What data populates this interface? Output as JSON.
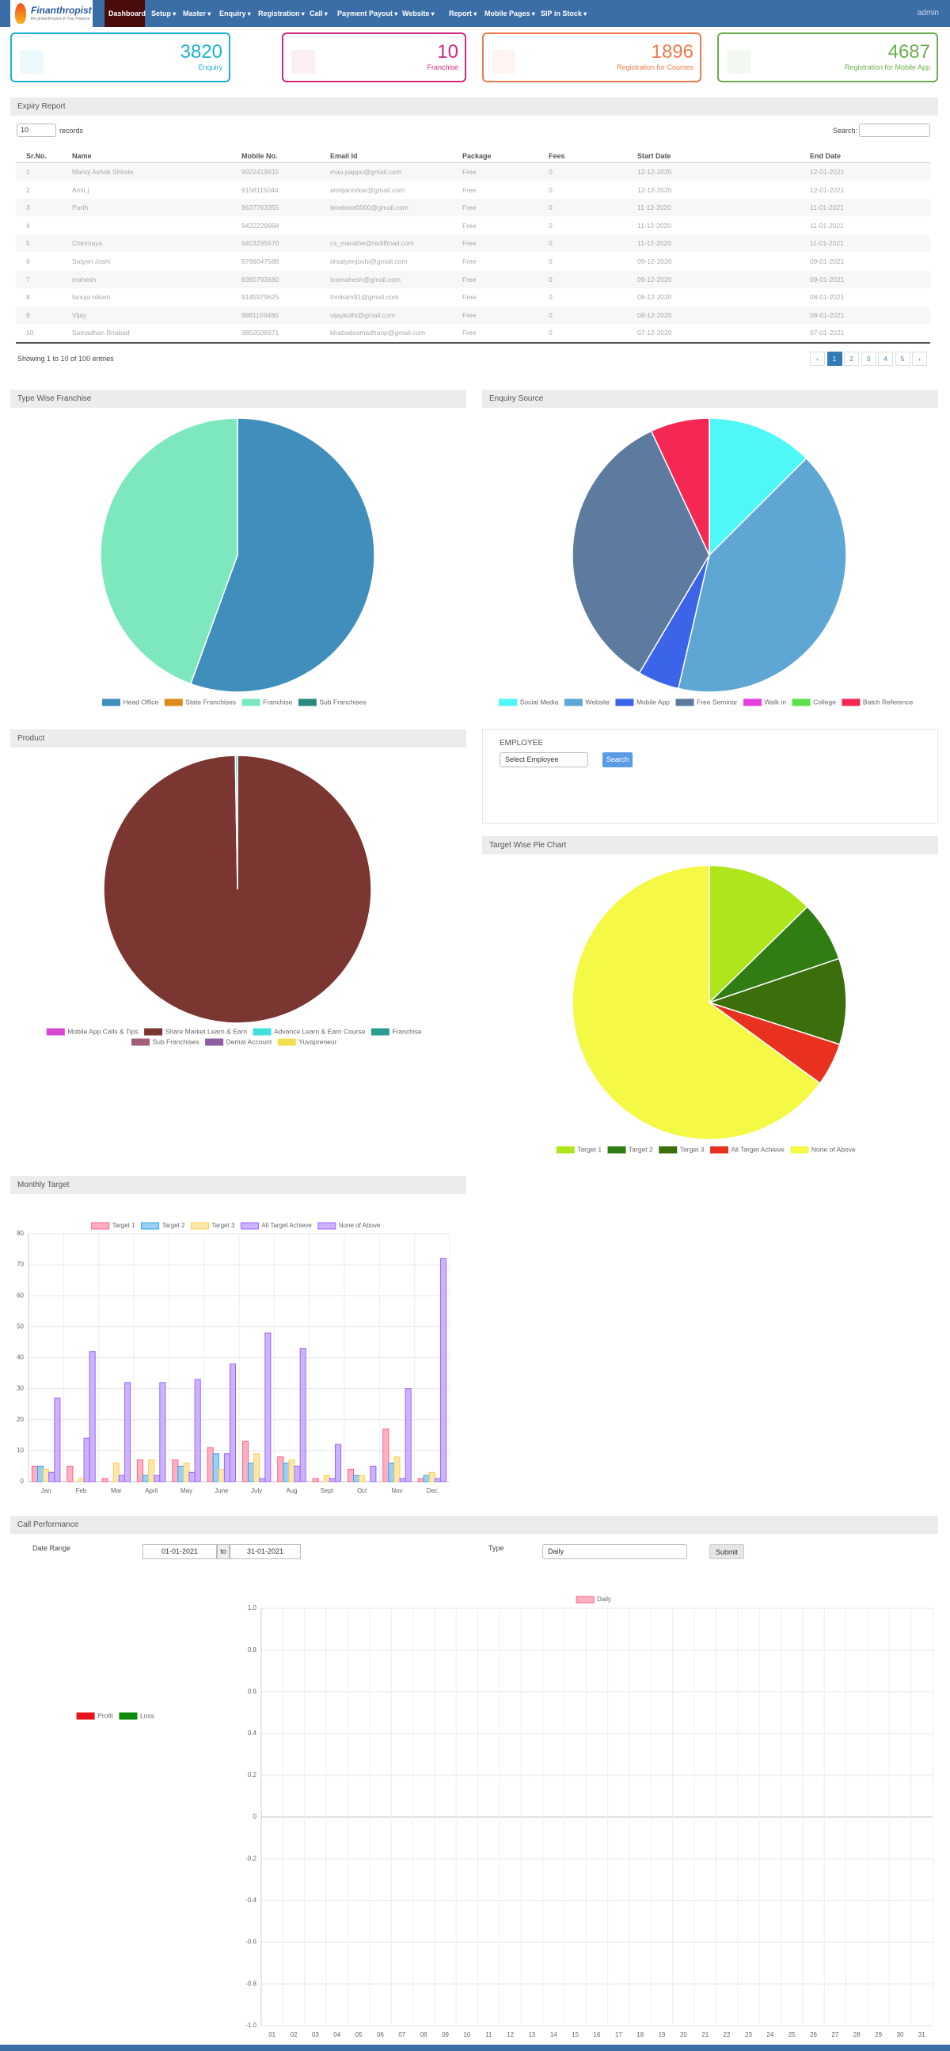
{
  "nav": {
    "brand": "Finanthropist",
    "tagline": "the philanthropist of Your Finance",
    "menu": [
      "Dashboard",
      "Setup",
      "Master",
      "Enquiry",
      "Registration",
      "Call",
      "Payment Payout",
      "Website",
      "Report",
      "Mobile Pages",
      "SIP in Stock"
    ],
    "user": "admin"
  },
  "stats": [
    {
      "value": 3820,
      "label": "Enquiry",
      "color": "#1cb2d4"
    },
    {
      "value": 10,
      "label": "Franchise",
      "color": "#d1287f"
    },
    {
      "value": 1896,
      "label": "Registration for Courses",
      "color": "#ef7a4c"
    },
    {
      "value": 4687,
      "label": "Registration for Mobile App",
      "color": "#6aaf4d"
    }
  ],
  "expiry_report": {
    "title": "Expiry Report",
    "length": "10",
    "records": "records",
    "search": "Search:",
    "columns": [
      "Sr.No.",
      "Name",
      "Mobile No.",
      "Email Id",
      "Package",
      "Fees",
      "Start Date",
      "End Date"
    ],
    "rows": [
      [
        "1",
        "Manoj Ashok Shinde",
        "9922419915",
        "mau.pappu@gmail.com",
        "Free",
        "0",
        "12-12-2020",
        "12-01-2021"
      ],
      [
        "2",
        "Amit j",
        "9158115044",
        "amitjanorkar@gmail.com",
        "Free",
        "0",
        "12-12-2020",
        "12-01-2021"
      ],
      [
        "3",
        "Parth",
        "9637763355",
        "timeboot0000@gmail.com",
        "Free",
        "0",
        "11-12-2020",
        "11-01-2021"
      ],
      [
        "4",
        null,
        "9422229968",
        null,
        "Free",
        "0",
        "11-12-2020",
        "11-01-2021"
      ],
      [
        "5",
        "Chinmaya",
        "9403295570",
        "cs_marathe@rediffmail.com",
        "Free",
        "0",
        "11-12-2020",
        "11-01-2021"
      ],
      [
        "6",
        "Satyen Joshi",
        "9766047588",
        "drsatyenjoshi@gmail.com",
        "Free",
        "0",
        "09-12-2020",
        "09-01-2021"
      ],
      [
        "7",
        "mahesh",
        "8390793680",
        "Icemahesh@gmail.com",
        "Free",
        "0",
        "09-12-2020",
        "09-01-2021"
      ],
      [
        "8",
        "tanuja nikam",
        "9145979625",
        "tnnikam91@gmail.com",
        "Free",
        "0",
        "08-12-2020",
        "08-01-2021"
      ],
      [
        "9",
        "Vijay",
        "9881159480",
        "vijaykolhi@gmail.com",
        "Free",
        "0",
        "08-12-2020",
        "08-01-2021"
      ],
      [
        "10",
        "Samadhan Bhabad",
        "9850508971",
        "bhabadsamadhanp@gmail.com",
        "Free",
        "0",
        "07-12-2020",
        "07-01-2021"
      ]
    ],
    "info": "Showing 1 to 10 of 100 entries",
    "pages": [
      "‹",
      "1",
      "2",
      "3",
      "4",
      "5",
      "›"
    ]
  },
  "employee": {
    "label": "EMPLOYEE",
    "select": "Select Employee",
    "button": "Search"
  },
  "call_performance": {
    "title": "Call Performance",
    "date_range": "Date Range",
    "from": "01-01-2021",
    "to_label": "to",
    "to": "31-01-2021",
    "type_label": "Type",
    "type": "Daily",
    "submit": "Submit"
  },
  "chart_data": [
    {
      "type": "pie",
      "title": "Type Wise Franchise",
      "categories": [
        "Head Office",
        "State Franchises",
        "Franchise",
        "Sub Franchises"
      ],
      "values": [
        5,
        0,
        4,
        0
      ],
      "colors": [
        "#3f8ebb",
        "#e0891d",
        "#7de8bd",
        "#2a8a80"
      ]
    },
    {
      "type": "pie",
      "title": "Enquiry Source",
      "categories": [
        "Social Media",
        "Website",
        "Mobile App",
        "Free Seminar",
        "Walk in",
        "College",
        "Batch Reference"
      ],
      "values": [
        478,
        1571,
        187,
        1318,
        0,
        0,
        266
      ],
      "colors": [
        "#4ef8f6",
        "#5ea6d3",
        "#3b64e8",
        "#5d7b9e",
        "#e63fe0",
        "#5ce04b",
        "#f42853"
      ]
    },
    {
      "type": "pie",
      "title": "Product",
      "categories": [
        "Mobile App Calls & Tips",
        "Share Market Learn & Earn",
        "Advance Learn & Earn Course",
        "Franchise",
        "Sub Franchises",
        "Demat Account",
        "Yuvapreneur"
      ],
      "values": [
        0,
        1891,
        5,
        0,
        0,
        0,
        0
      ],
      "colors": [
        "#d946d0",
        "#7b3631",
        "#40e0e0",
        "#2a9d8f",
        "#a0607a",
        "#8e5ca0",
        "#f0e050"
      ]
    },
    {
      "type": "pie",
      "title": "Target Wise Pie Chart",
      "categories": [
        "Target 1",
        "Target 2",
        "Target 3",
        "All Target Achieve",
        "None of Above"
      ],
      "values": [
        25,
        14,
        20,
        10,
        128
      ],
      "colors": [
        "#aee51b",
        "#2f7d13",
        "#3a6f0b",
        "#e8321f",
        "#f3f944"
      ]
    },
    {
      "type": "bar",
      "title": "Monthly Target",
      "categories": [
        "Jan",
        "Feb",
        "Mar",
        "April",
        "May",
        "June",
        "July",
        "Aug",
        "Sept",
        "Oct",
        "Nov",
        "Dec"
      ],
      "series": [
        {
          "name": "Target 1",
          "color": "#ffb1c1",
          "border_color": "#ff6384",
          "values": [
            5,
            5,
            1,
            7,
            7,
            11,
            13,
            8,
            1,
            4,
            17,
            1
          ]
        },
        {
          "name": "Target 2",
          "color": "#9ad0f5",
          "border_color": "#36a2eb",
          "values": [
            5,
            0,
            0,
            2,
            5,
            9,
            6,
            6,
            0,
            2,
            6,
            2
          ]
        },
        {
          "name": "Target 3",
          "color": "#ffe6aa",
          "border_color": "#ffcd56",
          "values": [
            4,
            1,
            6,
            7,
            6,
            4,
            9,
            7,
            2,
            2,
            8,
            3
          ]
        },
        {
          "name": "All Target Achieve",
          "color": "#ccb2ff",
          "border_color": "#9966ff",
          "values": [
            3,
            14,
            2,
            2,
            3,
            9,
            1,
            5,
            1,
            0,
            1,
            1
          ]
        },
        {
          "name": "None of Above",
          "color": "#ccb2ff",
          "border_color": "#9966ff",
          "values": [
            27,
            42,
            32,
            32,
            33,
            38,
            48,
            43,
            12,
            5,
            30,
            72
          ]
        }
      ],
      "ylim": [
        0,
        80
      ],
      "yticks": [
        0,
        10,
        20,
        30,
        40,
        50,
        60,
        70,
        80
      ],
      "grid": true
    },
    {
      "type": "pie",
      "categories": [
        "Profit",
        "Loss"
      ],
      "colors": [
        "#e8141b",
        "#0b8a0b"
      ]
    },
    {
      "type": "line",
      "categories": [
        "01",
        "02",
        "03",
        "04",
        "05",
        "06",
        "07",
        "08",
        "09",
        "10",
        "11",
        "12",
        "13",
        "14",
        "15",
        "16",
        "17",
        "18",
        "19",
        "20",
        "21",
        "22",
        "23",
        "24",
        "25",
        "26",
        "27",
        "28",
        "29",
        "30",
        "31"
      ],
      "series": [
        {
          "name": "Daily",
          "color": "#ffb1c1",
          "border_color": "#ff6384"
        }
      ],
      "ylim": [
        -1,
        1
      ],
      "yticks": [
        {
          "value": -1,
          "label": "-1.0"
        },
        -0.8,
        -0.6,
        -0.4,
        -0.2,
        0,
        0.2,
        0.4,
        0.6,
        0.8,
        {
          "value": 1,
          "label": "1.0"
        }
      ],
      "grid": true
    }
  ]
}
